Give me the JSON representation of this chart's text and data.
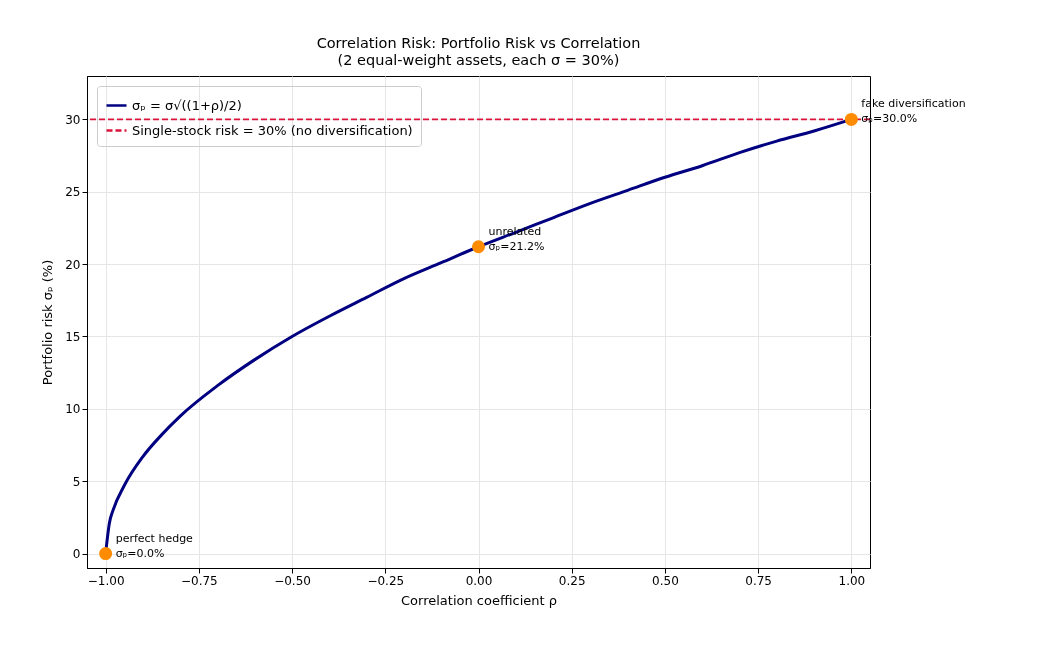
{
  "chart_data": {
    "type": "line",
    "title": "Correlation Risk: Portfolio Risk vs Correlation",
    "subtitle": "(2 equal-weight assets, each σ = 30%)",
    "xlabel": "Correlation coefficient  ρ",
    "ylabel": "Portfolio risk  σₚ  (%)",
    "xlim": [
      -1.05,
      1.05
    ],
    "ylim": [
      -1,
      33
    ],
    "xticks": [
      {
        "value": -1,
        "label": "−1.00"
      },
      {
        "value": -0.75,
        "label": "−0.75"
      },
      {
        "value": -0.5,
        "label": "−0.50"
      },
      {
        "value": -0.25,
        "label": "−0.25"
      },
      {
        "value": 0,
        "label": "0.00"
      },
      {
        "value": 0.25,
        "label": "0.25"
      },
      {
        "value": 0.5,
        "label": "0.50"
      },
      {
        "value": 0.75,
        "label": "0.75"
      },
      {
        "value": 1,
        "label": "1.00"
      }
    ],
    "yticks": [
      0,
      5,
      10,
      15,
      20,
      25,
      30
    ],
    "grid": true,
    "legend": "top left",
    "series": [
      {
        "name": "σₚ = σ√((1+ρ)/2)",
        "type": "line",
        "color": "#000080",
        "line_style": "solid",
        "x": [
          -1,
          -0.99,
          -0.98,
          -0.95,
          -0.9,
          -0.85,
          -0.8,
          -0.7,
          -0.6,
          -0.5,
          -0.4,
          -0.3,
          -0.2,
          -0.1,
          0,
          0.1,
          0.2,
          0.3,
          0.4,
          0.5,
          0.6,
          0.7,
          0.8,
          0.9,
          1
        ],
        "values": [
          0,
          2.1,
          3.0,
          4.7,
          6.7,
          8.2,
          9.5,
          11.6,
          13.4,
          15.0,
          16.4,
          17.7,
          19.0,
          20.1,
          21.2,
          22.2,
          23.2,
          24.2,
          25.1,
          26.0,
          26.8,
          27.7,
          28.5,
          29.2,
          30.0
        ]
      },
      {
        "type": "scatter",
        "color": "#ff8c00",
        "marker": "circle",
        "x": [
          -1,
          0,
          1
        ],
        "values": [
          0,
          21.2,
          30
        ]
      }
    ],
    "ref_lines": [
      {
        "axis": "y",
        "value": 30,
        "label": "Single-stock risk = 30% (no diversification)",
        "color": "#dc143c",
        "line_style": "dashed"
      }
    ],
    "annotations": [
      {
        "text": "perfect hedge\nσₚ=0.0%",
        "x": -1,
        "y": 0
      },
      {
        "text": "unrelated\nσₚ=21.2%",
        "x": 0,
        "y": 21.2
      },
      {
        "text": "fake diversification\nσₚ=30.0%",
        "x": 1,
        "y": 30
      }
    ]
  }
}
